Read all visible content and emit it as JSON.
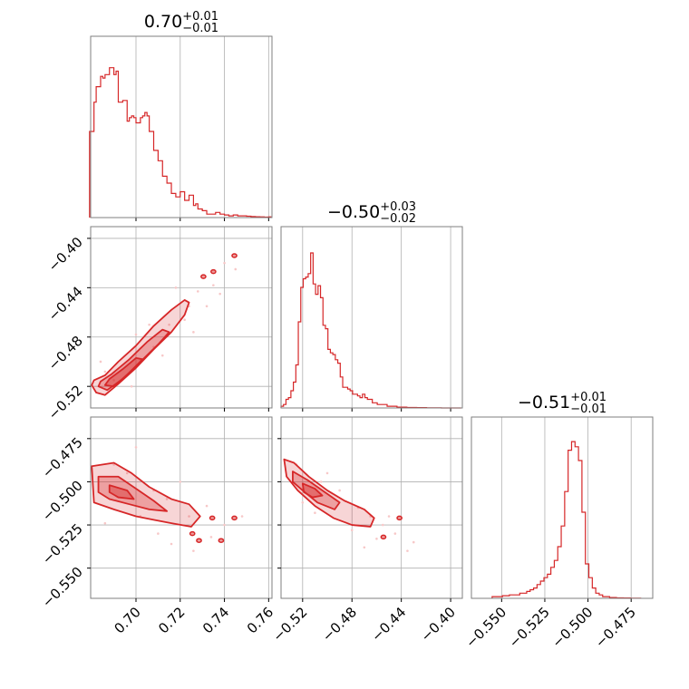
{
  "chart_data": {
    "type": "corner",
    "color": "#d62728",
    "fill_color": "#f4a6a6",
    "dot_color": "#f7c8c8",
    "grid": true,
    "parameters": [
      {
        "title_main": "0.70",
        "title_plus": "+0.01",
        "title_minus": "−0.01",
        "range": [
          0.6795,
          0.7615
        ],
        "ticks": [
          0.7,
          0.72,
          0.74,
          0.76
        ],
        "tick_labels": [
          "0.70",
          "0.72",
          "0.74",
          "0.76"
        ],
        "hist_x": [
          0.6795,
          0.6805,
          0.6815,
          0.6825,
          0.6835,
          0.6845,
          0.6855,
          0.6865,
          0.6875,
          0.6885,
          0.6895,
          0.6905,
          0.6915,
          0.6925,
          0.6935,
          0.6945,
          0.6955,
          0.6965,
          0.6975,
          0.6985,
          0.6995,
          0.7005,
          0.7015,
          0.7025,
          0.7035,
          0.7045,
          0.7055,
          0.7065,
          0.7075,
          0.7085,
          0.7095,
          0.7105,
          0.7115,
          0.7125,
          0.7135,
          0.7145,
          0.7155,
          0.7165,
          0.7175,
          0.7185,
          0.7195,
          0.7205,
          0.7215,
          0.7225,
          0.7235,
          0.7245,
          0.7255,
          0.7265,
          0.7275,
          0.7285,
          0.7295,
          0.7305,
          0.7315,
          0.7325,
          0.7335,
          0.7345,
          0.7355,
          0.7365,
          0.7375,
          0.7385,
          0.7395,
          0.7405,
          0.7415,
          0.7425,
          0.7435,
          0.7445,
          0.7455,
          0.7465,
          0.7475,
          0.7485,
          0.7495,
          0.7505,
          0.7515,
          0.7525,
          0.7535,
          0.7545,
          0.7555,
          0.7565,
          0.7575,
          0.7585,
          0.7595,
          0.7605
        ],
        "hist_y": [
          0.5,
          0.5,
          0.67,
          0.76,
          0.76,
          0.82,
          0.81,
          0.83,
          0.83,
          0.87,
          0.87,
          0.83,
          0.85,
          0.67,
          0.67,
          0.68,
          0.68,
          0.56,
          0.58,
          0.59,
          0.58,
          0.55,
          0.55,
          0.58,
          0.59,
          0.61,
          0.59,
          0.5,
          0.5,
          0.39,
          0.39,
          0.33,
          0.33,
          0.24,
          0.24,
          0.2,
          0.2,
          0.14,
          0.14,
          0.12,
          0.12,
          0.15,
          0.15,
          0.1,
          0.1,
          0.13,
          0.13,
          0.07,
          0.08,
          0.05,
          0.05,
          0.04,
          0.04,
          0.02,
          0.02,
          0.02,
          0.02,
          0.03,
          0.03,
          0.02,
          0.02,
          0.015,
          0.015,
          0.01,
          0.01,
          0.015,
          0.015,
          0.01,
          0.01,
          0.01,
          0.01,
          0.008,
          0.008,
          0.006,
          0.006,
          0.005,
          0.005,
          0.004,
          0.004,
          0.003,
          0.003,
          0.004
        ]
      },
      {
        "title_main": "−0.50",
        "title_plus": "+0.03",
        "title_minus": "−0.02",
        "range": [
          -0.5375,
          -0.3905
        ],
        "ticks": [
          -0.52,
          -0.48,
          -0.44,
          -0.4
        ],
        "tick_labels": [
          "−0.52",
          "−0.48",
          "−0.44",
          "−0.40"
        ],
        "hist_x": [
          -0.5365,
          -0.5345,
          -0.5325,
          -0.5305,
          -0.5285,
          -0.5265,
          -0.5245,
          -0.5225,
          -0.5205,
          -0.5185,
          -0.5165,
          -0.5145,
          -0.5125,
          -0.5105,
          -0.5085,
          -0.5065,
          -0.5045,
          -0.5025,
          -0.5005,
          -0.4985,
          -0.4965,
          -0.4945,
          -0.4925,
          -0.4905,
          -0.4885,
          -0.4865,
          -0.4845,
          -0.4825,
          -0.4805,
          -0.4785,
          -0.4765,
          -0.4745,
          -0.4725,
          -0.4705,
          -0.4685,
          -0.4665,
          -0.4645,
          -0.4625,
          -0.4605,
          -0.4585,
          -0.4565,
          -0.4545,
          -0.4525,
          -0.4505,
          -0.4485,
          -0.4465,
          -0.4445,
          -0.4425,
          -0.4405,
          -0.4385,
          -0.4365,
          -0.4345,
          -0.4325,
          -0.4305,
          -0.4285,
          -0.4265,
          -0.4245,
          -0.4225,
          -0.4205,
          -0.4185,
          -0.4165,
          -0.4145,
          -0.4125,
          -0.4105,
          -0.4085,
          -0.4065,
          -0.4045,
          -0.4025,
          -0.4005,
          -0.3985,
          -0.3965,
          -0.3945,
          -0.3925
        ],
        "hist_y": [
          0.01,
          0.02,
          0.05,
          0.06,
          0.1,
          0.15,
          0.25,
          0.5,
          0.7,
          0.75,
          0.76,
          0.78,
          0.9,
          0.72,
          0.66,
          0.71,
          0.64,
          0.48,
          0.46,
          0.34,
          0.32,
          0.31,
          0.28,
          0.26,
          0.18,
          0.12,
          0.12,
          0.11,
          0.1,
          0.08,
          0.08,
          0.07,
          0.06,
          0.08,
          0.06,
          0.05,
          0.05,
          0.03,
          0.03,
          0.02,
          0.02,
          0.02,
          0.02,
          0.01,
          0.01,
          0.01,
          0.01,
          0.005,
          0.005,
          0.005,
          0.005,
          0.003,
          0.003,
          0.003,
          0.003,
          0.002,
          0.002,
          0.002,
          0.002,
          0.001,
          0.001,
          0.001,
          0.001,
          0.001,
          0.001,
          0.0,
          0.0,
          0.0,
          0.0,
          0.0,
          0.0,
          0.0,
          0.0
        ]
      },
      {
        "title_main": "−0.51",
        "title_plus": "+0.01",
        "title_minus": "−0.01",
        "range": [
          -0.5675,
          -0.4625
        ],
        "ticks": [
          -0.55,
          -0.525,
          -0.5,
          -0.475
        ],
        "tick_labels": [
          "−0.550",
          "−0.525",
          "−0.500",
          "−0.475"
        ],
        "hist_x": [
          -0.5545,
          -0.5525,
          -0.5505,
          -0.5485,
          -0.5465,
          -0.5445,
          -0.5425,
          -0.5405,
          -0.5385,
          -0.5365,
          -0.5345,
          -0.5325,
          -0.5305,
          -0.5285,
          -0.5265,
          -0.5245,
          -0.5225,
          -0.5205,
          -0.5185,
          -0.5165,
          -0.5145,
          -0.5125,
          -0.5105,
          -0.5085,
          -0.5065,
          -0.5045,
          -0.5025,
          -0.5005,
          -0.4985,
          -0.4965,
          -0.4945,
          -0.4925,
          -0.4905,
          -0.4885,
          -0.4865,
          -0.4845,
          -0.4825,
          -0.4805,
          -0.4785,
          -0.4765,
          -0.4745,
          -0.4725,
          -0.4705
        ],
        "hist_y": [
          0.01,
          0.01,
          0.01,
          0.015,
          0.015,
          0.02,
          0.02,
          0.02,
          0.03,
          0.03,
          0.04,
          0.05,
          0.06,
          0.08,
          0.1,
          0.12,
          0.14,
          0.18,
          0.22,
          0.3,
          0.42,
          0.62,
          0.86,
          0.91,
          0.88,
          0.8,
          0.5,
          0.2,
          0.12,
          0.06,
          0.03,
          0.02,
          0.01,
          0.01,
          0.005,
          0.005,
          0.003,
          0.003,
          0.002,
          0.002,
          0.001,
          0.001,
          0.001
        ]
      }
    ],
    "pairs": [
      {
        "x_param": 0,
        "y_param": 1,
        "y_ticks": [
          -0.4,
          -0.44,
          -0.48,
          -0.52
        ],
        "y_tick_labels": [
          "−0.40",
          "−0.44",
          "−0.48",
          "−0.52"
        ],
        "contours": [
          [
            [
              0.68,
              -0.519
            ],
            [
              0.682,
              -0.525
            ],
            [
              0.686,
              -0.527
            ],
            [
              0.692,
              -0.518
            ],
            [
              0.7,
              -0.505
            ],
            [
              0.708,
              -0.49
            ],
            [
              0.716,
              -0.476
            ],
            [
              0.722,
              -0.462
            ],
            [
              0.724,
              -0.452
            ],
            [
              0.722,
              -0.45
            ],
            [
              0.716,
              -0.458
            ],
            [
              0.708,
              -0.471
            ],
            [
              0.7,
              -0.487
            ],
            [
              0.692,
              -0.5
            ],
            [
              0.686,
              -0.511
            ],
            [
              0.681,
              -0.515
            ]
          ],
          [
            [
              0.683,
              -0.52
            ],
            [
              0.687,
              -0.523
            ],
            [
              0.694,
              -0.514
            ],
            [
              0.702,
              -0.5
            ],
            [
              0.71,
              -0.486
            ],
            [
              0.715,
              -0.476
            ],
            [
              0.712,
              -0.474
            ],
            [
              0.705,
              -0.484
            ],
            [
              0.697,
              -0.498
            ],
            [
              0.689,
              -0.51
            ],
            [
              0.684,
              -0.516
            ]
          ],
          [
            [
              0.686,
              -0.519
            ],
            [
              0.69,
              -0.52
            ],
            [
              0.697,
              -0.509
            ],
            [
              0.703,
              -0.498
            ],
            [
              0.7,
              -0.497
            ],
            [
              0.694,
              -0.506
            ],
            [
              0.688,
              -0.514
            ]
          ]
        ],
        "islands": [
          [
            0.7305,
            -0.431
          ],
          [
            0.735,
            -0.427
          ],
          [
            0.7445,
            -0.414
          ]
        ],
        "points": [
          [
            0.69,
            -0.515
          ],
          [
            0.702,
            -0.498
          ],
          [
            0.706,
            -0.47
          ],
          [
            0.715,
            -0.47
          ],
          [
            0.724,
            -0.455
          ],
          [
            0.728,
            -0.443
          ],
          [
            0.735,
            -0.438
          ],
          [
            0.738,
            -0.445
          ],
          [
            0.686,
            -0.508
          ],
          [
            0.708,
            -0.488
          ],
          [
            0.712,
            -0.495
          ],
          [
            0.722,
            -0.466
          ],
          [
            0.732,
            -0.455
          ],
          [
            0.698,
            -0.52
          ],
          [
            0.684,
            -0.5
          ],
          [
            0.745,
            -0.425
          ],
          [
            0.718,
            -0.44
          ],
          [
            0.74,
            -0.42
          ],
          [
            0.7,
            -0.478
          ],
          [
            0.726,
            -0.476
          ]
        ]
      },
      {
        "x_param": 0,
        "y_param": 2,
        "y_ticks": [
          -0.475,
          -0.5,
          -0.525,
          -0.55
        ],
        "y_tick_labels": [
          "−0.475",
          "−0.500",
          "−0.525",
          "−0.550"
        ],
        "contours": [
          [
            [
              0.68,
              -0.491
            ],
            [
              0.69,
              -0.489
            ],
            [
              0.698,
              -0.495
            ],
            [
              0.706,
              -0.503
            ],
            [
              0.716,
              -0.51
            ],
            [
              0.724,
              -0.513
            ],
            [
              0.729,
              -0.52
            ],
            [
              0.725,
              -0.526
            ],
            [
              0.716,
              -0.524
            ],
            [
              0.708,
              -0.522
            ],
            [
              0.7,
              -0.52
            ],
            [
              0.69,
              -0.516
            ],
            [
              0.681,
              -0.512
            ]
          ],
          [
            [
              0.683,
              -0.497
            ],
            [
              0.692,
              -0.497
            ],
            [
              0.7,
              -0.504
            ],
            [
              0.708,
              -0.511
            ],
            [
              0.714,
              -0.517
            ],
            [
              0.706,
              -0.516
            ],
            [
              0.697,
              -0.513
            ],
            [
              0.688,
              -0.51
            ],
            [
              0.683,
              -0.506
            ]
          ],
          [
            [
              0.688,
              -0.502
            ],
            [
              0.696,
              -0.505
            ],
            [
              0.699,
              -0.51
            ],
            [
              0.692,
              -0.509
            ],
            [
              0.688,
              -0.506
            ]
          ]
        ],
        "islands": [
          [
            0.7255,
            -0.53
          ],
          [
            0.7285,
            -0.534
          ],
          [
            0.7345,
            -0.521
          ],
          [
            0.7445,
            -0.521
          ],
          [
            0.7385,
            -0.534
          ]
        ],
        "points": [
          [
            0.69,
            -0.49
          ],
          [
            0.702,
            -0.52
          ],
          [
            0.714,
            -0.51
          ],
          [
            0.724,
            -0.52
          ],
          [
            0.732,
            -0.514
          ],
          [
            0.74,
            -0.525
          ],
          [
            0.7,
            -0.48
          ],
          [
            0.686,
            -0.524
          ],
          [
            0.71,
            -0.53
          ],
          [
            0.72,
            -0.5
          ],
          [
            0.734,
            -0.532
          ],
          [
            0.748,
            -0.52
          ],
          [
            0.696,
            -0.495
          ],
          [
            0.708,
            -0.505
          ],
          [
            0.726,
            -0.54
          ],
          [
            0.716,
            -0.536
          ]
        ]
      },
      {
        "x_param": 1,
        "y_param": 2,
        "y_ticks": [],
        "y_tick_labels": [],
        "contours": [
          [
            [
              -0.535,
              -0.487
            ],
            [
              -0.527,
              -0.489
            ],
            [
              -0.515,
              -0.497
            ],
            [
              -0.5,
              -0.505
            ],
            [
              -0.486,
              -0.511
            ],
            [
              -0.47,
              -0.516
            ],
            [
              -0.462,
              -0.521
            ],
            [
              -0.465,
              -0.526
            ],
            [
              -0.48,
              -0.525
            ],
            [
              -0.495,
              -0.521
            ],
            [
              -0.51,
              -0.514
            ],
            [
              -0.524,
              -0.505
            ],
            [
              -0.533,
              -0.497
            ]
          ],
          [
            [
              -0.528,
              -0.494
            ],
            [
              -0.516,
              -0.499
            ],
            [
              -0.502,
              -0.506
            ],
            [
              -0.49,
              -0.512
            ],
            [
              -0.494,
              -0.516
            ],
            [
              -0.508,
              -0.512
            ],
            [
              -0.52,
              -0.505
            ],
            [
              -0.528,
              -0.5
            ]
          ],
          [
            [
              -0.52,
              -0.501
            ],
            [
              -0.51,
              -0.504
            ],
            [
              -0.504,
              -0.508
            ],
            [
              -0.512,
              -0.509
            ],
            [
              -0.519,
              -0.506
            ]
          ]
        ],
        "islands": [
          [
            -0.4545,
            -0.532
          ],
          [
            -0.4415,
            -0.521
          ]
        ],
        "points": [
          [
            -0.525,
            -0.49
          ],
          [
            -0.505,
            -0.5
          ],
          [
            -0.49,
            -0.505
          ],
          [
            -0.475,
            -0.515
          ],
          [
            -0.465,
            -0.52
          ],
          [
            -0.455,
            -0.525
          ],
          [
            -0.445,
            -0.53
          ],
          [
            -0.435,
            -0.54
          ],
          [
            -0.43,
            -0.535
          ],
          [
            -0.45,
            -0.52
          ],
          [
            -0.46,
            -0.533
          ],
          [
            -0.51,
            -0.518
          ],
          [
            -0.48,
            -0.528
          ],
          [
            -0.5,
            -0.495
          ],
          [
            -0.52,
            -0.512
          ],
          [
            -0.47,
            -0.538
          ]
        ]
      }
    ]
  }
}
